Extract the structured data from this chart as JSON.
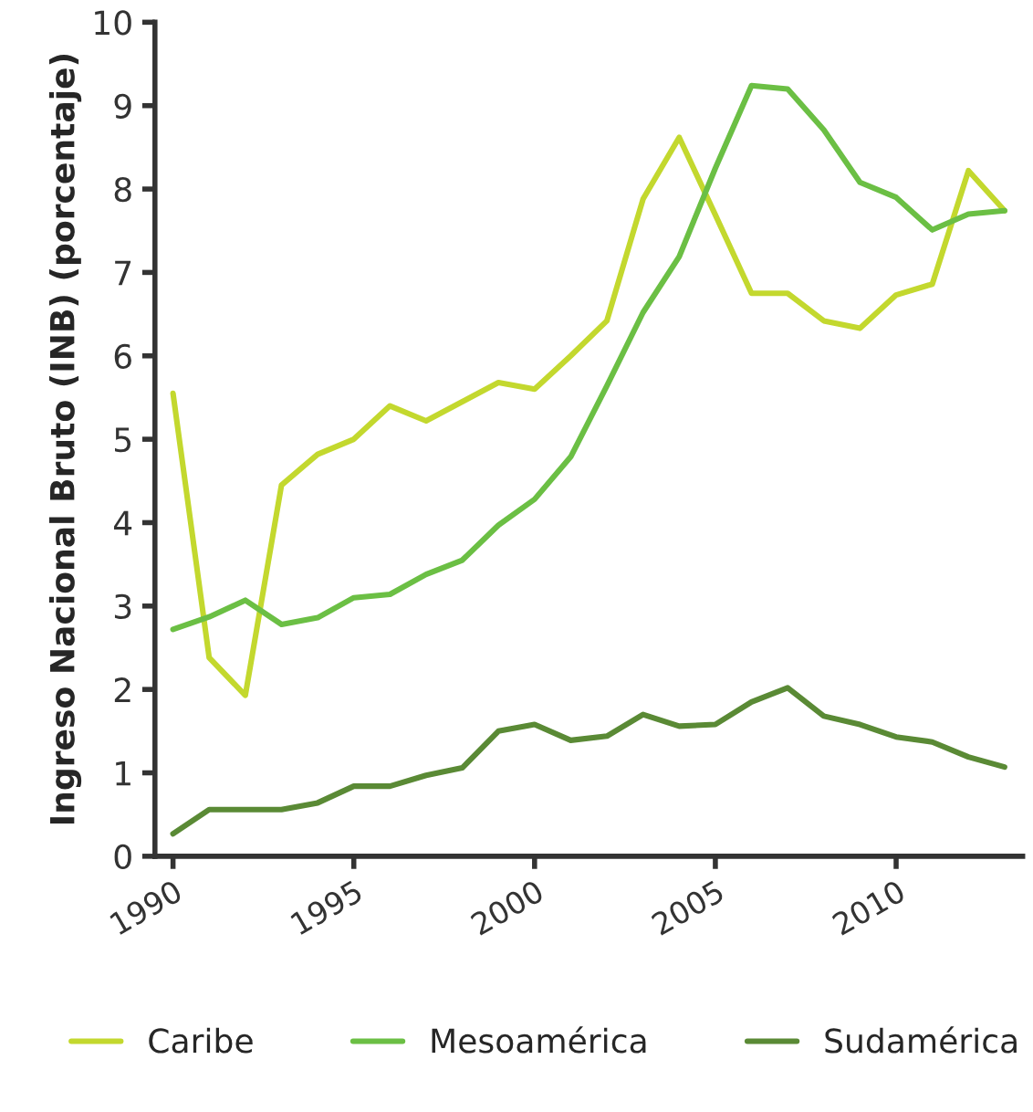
{
  "chart_data": {
    "type": "line",
    "ylabel": "Ingreso Nacional Bruto (INB) (porcentaje)",
    "x": [
      1990,
      1991,
      1992,
      1993,
      1994,
      1995,
      1996,
      1997,
      1998,
      1999,
      2000,
      2001,
      2002,
      2003,
      2004,
      2005,
      2006,
      2007,
      2008,
      2009,
      2010,
      2011,
      2012,
      2013
    ],
    "series": [
      {
        "name": "Caribe",
        "color": "#c3d82e",
        "values": [
          5.55,
          2.38,
          1.93,
          4.45,
          4.82,
          5.0,
          5.4,
          5.22,
          5.45,
          5.68,
          5.6,
          6.0,
          6.42,
          7.88,
          8.62,
          7.69,
          6.75,
          6.75,
          6.42,
          6.33,
          6.73,
          6.86,
          8.22,
          7.74
        ]
      },
      {
        "name": "Mesoamérica",
        "color": "#6bbf44",
        "values": [
          2.72,
          2.87,
          3.07,
          2.78,
          2.86,
          3.1,
          3.14,
          3.38,
          3.55,
          3.97,
          4.28,
          4.79,
          5.64,
          6.52,
          7.19,
          8.25,
          9.24,
          9.2,
          8.71,
          8.08,
          7.9,
          7.51,
          7.7,
          7.74
        ]
      },
      {
        "name": "Sudamérica",
        "color": "#5a8a35",
        "values": [
          0.27,
          0.56,
          0.56,
          0.56,
          0.64,
          0.84,
          0.84,
          0.97,
          1.06,
          1.5,
          1.58,
          1.39,
          1.44,
          1.7,
          1.56,
          1.58,
          1.85,
          2.02,
          1.68,
          1.58,
          1.43,
          1.37,
          1.19,
          1.07
        ]
      }
    ],
    "xlim": [
      1989.5,
      2013.5
    ],
    "xticks": [
      1990,
      1995,
      2000,
      2005,
      2010
    ],
    "ylim": [
      0,
      10
    ],
    "yticks": [
      0,
      1,
      2,
      3,
      4,
      5,
      6,
      7,
      8,
      9,
      10
    ],
    "grid": false,
    "legend": "bottom",
    "marker": "none",
    "line_style": "solid"
  }
}
